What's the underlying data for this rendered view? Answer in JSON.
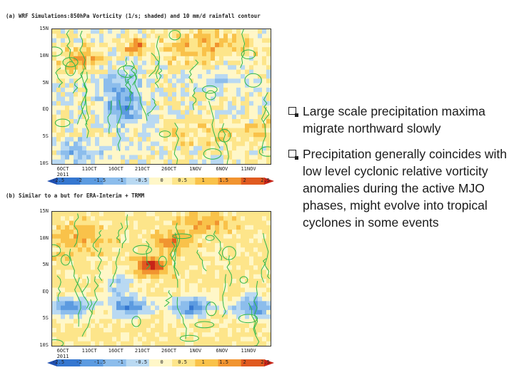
{
  "slide": {
    "bullets": [
      "Large scale precipitation maxima migrate northward slowly",
      "Precipitation generally coincides with low level cyclonic relative vorticity anomalies during the active MJO phases, might evolve into tropical cyclones in some events"
    ]
  },
  "chart_data": [
    {
      "type": "heatmap",
      "title": "(a) WRF Simulations:850hPa Vorticity (1/s; shaded) and 10 mm/d rainfall contour",
      "xlabel": "",
      "ylabel": "",
      "x_tick_labels": [
        "6OCT",
        "11OCT",
        "16OCT",
        "21OCT",
        "26OCT",
        "1NOV",
        "6NOV",
        "11NOV"
      ],
      "x_sub_label": "2011",
      "y_tick_labels": [
        "15N",
        "10N",
        "5N",
        "EQ",
        "5S",
        "10S"
      ],
      "ylim": [
        -10,
        15
      ],
      "colorbar_levels": [
        "-2.5",
        "-2",
        "-1.5",
        "-1",
        "-0.5",
        "0",
        "0.5",
        "1",
        "1.5",
        "2",
        "2.5"
      ],
      "contour": "10 mm/d rainfall"
    },
    {
      "type": "heatmap",
      "title": "(b) Similar to a but for ERA-Interim + TRMM",
      "xlabel": "",
      "ylabel": "",
      "x_tick_labels": [
        "6OCT",
        "11OCT",
        "16OCT",
        "21OCT",
        "26OCT",
        "1NOV",
        "6NOV",
        "11NOV"
      ],
      "x_sub_label": "2011",
      "y_tick_labels": [
        "15N",
        "10N",
        "5N",
        "EQ",
        "5S",
        "10S"
      ],
      "ylim": [
        -10,
        15
      ],
      "colorbar_levels": [
        "-2.5",
        "-2",
        "-1.5",
        "-1",
        "-0.5",
        "0",
        "0.5",
        "1",
        "1.5",
        "2",
        "2.5"
      ],
      "contour": "10 mm/d rainfall"
    }
  ],
  "colors": {
    "scale": [
      "#1f4fb0",
      "#3577d0",
      "#5c9be0",
      "#8cbdec",
      "#b9d9f2",
      "#fff7c8",
      "#fde58a",
      "#f9c24a",
      "#f19430",
      "#e05a20",
      "#c62418"
    ],
    "contour": "#2db84a"
  }
}
